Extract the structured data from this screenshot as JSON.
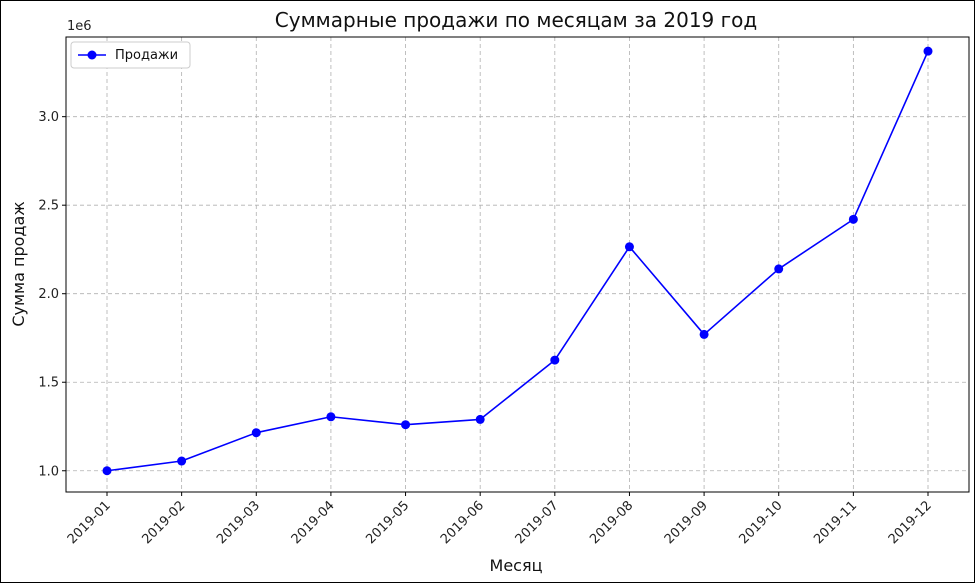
{
  "chart_data": {
    "type": "line",
    "title": "Суммарные продажи по месяцам за 2019 год",
    "xlabel": "Месяц",
    "ylabel": "Сумма продаж",
    "y_offset_label": "1e6",
    "categories": [
      "2019-01",
      "2019-02",
      "2019-03",
      "2019-04",
      "2019-05",
      "2019-06",
      "2019-07",
      "2019-08",
      "2019-09",
      "2019-10",
      "2019-11",
      "2019-12"
    ],
    "series": [
      {
        "name": "Продажи",
        "color": "#0000ff",
        "marker": "circle",
        "values": [
          1.0,
          1.055,
          1.215,
          1.305,
          1.26,
          1.29,
          1.625,
          2.265,
          1.77,
          2.14,
          2.42,
          3.37
        ]
      }
    ],
    "y_ticks": [
      "1.0",
      "1.5",
      "2.0",
      "2.5",
      "3.0"
    ],
    "y_tick_values": [
      1.0,
      1.5,
      2.0,
      2.5,
      3.0
    ],
    "ylim": [
      0.88,
      3.45
    ],
    "grid": true,
    "legend_position": "top-left"
  }
}
